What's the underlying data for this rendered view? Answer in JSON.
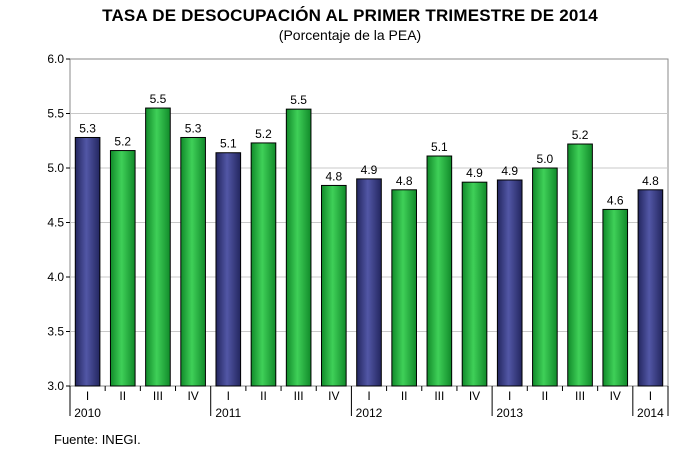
{
  "title": "TASA DE DESOCUPACIÓN AL PRIMER TRIMESTRE DE 2014",
  "subtitle": "(Porcentaje de la PEA)",
  "source": "Fuente: INEGI.",
  "colors": {
    "first_quarter": "#2c2f7a",
    "other_quarters": "#1fae3a",
    "grid": "#c8c8c8",
    "plot_background": "#ffffff"
  },
  "chart_data": {
    "type": "bar",
    "title": "TASA DE DESOCUPACIÓN AL PRIMER TRIMESTRE DE 2014",
    "subtitle": "(Porcentaje de la PEA)",
    "xlabel": "",
    "ylabel": "",
    "ylim": [
      3.0,
      6.0
    ],
    "yticks": [
      "3.0",
      "3.5",
      "4.0",
      "4.5",
      "5.0",
      "5.5",
      "6.0"
    ],
    "grid": true,
    "legend": "none",
    "categories": [
      "I",
      "II",
      "III",
      "IV",
      "I",
      "II",
      "III",
      "IV",
      "I",
      "II",
      "III",
      "IV",
      "I",
      "II",
      "III",
      "IV",
      "I"
    ],
    "years": [
      {
        "label": "2010",
        "index": 0
      },
      {
        "label": "2011",
        "index": 4
      },
      {
        "label": "2012",
        "index": 8
      },
      {
        "label": "2013",
        "index": 12
      },
      {
        "label": "2014",
        "index": 16
      }
    ],
    "values": [
      5.3,
      5.2,
      5.5,
      5.3,
      5.1,
      5.2,
      5.5,
      4.8,
      4.9,
      4.8,
      5.1,
      4.9,
      4.9,
      5.0,
      5.2,
      4.6,
      4.8
    ],
    "value_labels": [
      "5.3",
      "5.2",
      "5.5",
      "5.3",
      "5.1",
      "5.2",
      "5.5",
      "4.8",
      "4.9",
      "4.8",
      "5.1",
      "4.9",
      "4.9",
      "5.0",
      "5.2",
      "4.6",
      "4.8"
    ],
    "heights": [
      5.28,
      5.16,
      5.55,
      5.28,
      5.14,
      5.23,
      5.54,
      4.84,
      4.9,
      4.8,
      5.11,
      4.87,
      4.89,
      5.0,
      5.22,
      4.62,
      4.8
    ]
  }
}
